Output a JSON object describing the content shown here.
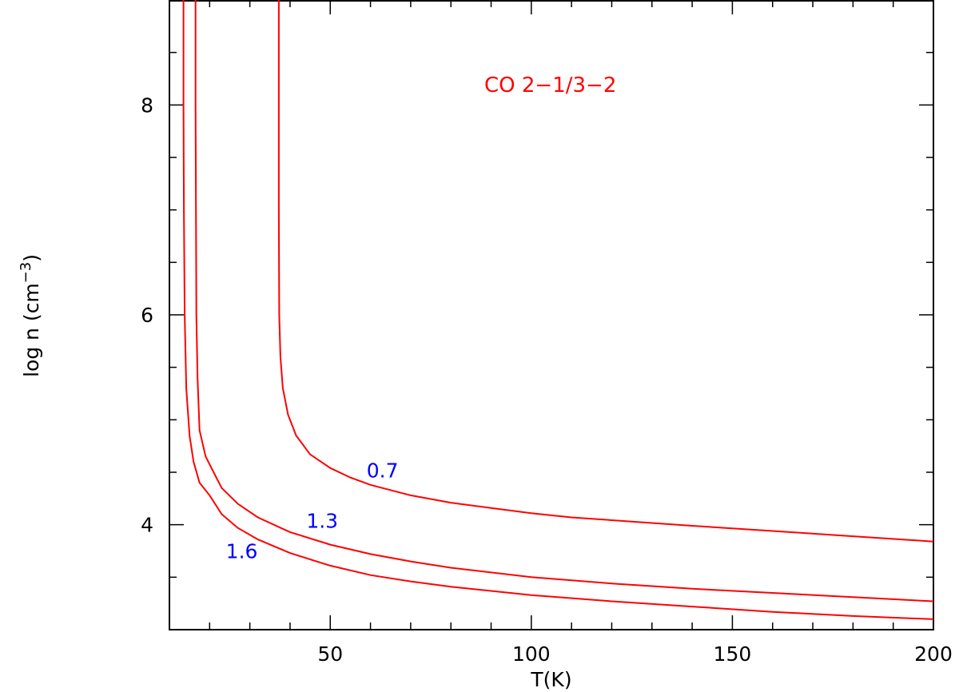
{
  "chart_data": {
    "type": "line",
    "title": "",
    "annotation": "CO 2−1/3−2",
    "xlabel": "T(K)",
    "ylabel_main": "log n  (cm",
    "ylabel_sup": "−3",
    "ylabel_close": ")",
    "xlim": [
      10,
      200
    ],
    "ylim": [
      3.0,
      9.0
    ],
    "xticks": [
      50,
      100,
      150,
      200
    ],
    "yticks": [
      4,
      6,
      8
    ],
    "grid": false,
    "colors": {
      "line": "#ff0000",
      "label": "#0000ff",
      "annotation": "#ff0000",
      "axis": "#000000"
    },
    "series": [
      {
        "label": "0.7",
        "label_at": [
          63,
          4.45
        ],
        "points": [
          [
            37.2,
            9.0
          ],
          [
            37.2,
            8.0
          ],
          [
            37.2,
            7.0
          ],
          [
            37.3,
            6.0
          ],
          [
            37.6,
            5.6
          ],
          [
            38.2,
            5.3
          ],
          [
            39.5,
            5.05
          ],
          [
            41.5,
            4.85
          ],
          [
            45,
            4.67
          ],
          [
            50,
            4.54
          ],
          [
            55,
            4.45
          ],
          [
            60,
            4.38
          ],
          [
            70,
            4.28
          ],
          [
            80,
            4.21
          ],
          [
            90,
            4.16
          ],
          [
            100,
            4.11
          ],
          [
            110,
            4.07
          ],
          [
            125,
            4.03
          ],
          [
            140,
            3.99
          ],
          [
            160,
            3.94
          ],
          [
            180,
            3.89
          ],
          [
            200,
            3.84
          ]
        ]
      },
      {
        "label": "1.3",
        "label_at": [
          48,
          3.97
        ],
        "points": [
          [
            16.5,
            9.0
          ],
          [
            16.5,
            8.0
          ],
          [
            16.6,
            7.0
          ],
          [
            16.7,
            6.0
          ],
          [
            17.0,
            5.4
          ],
          [
            17.5,
            4.9
          ],
          [
            19,
            4.65
          ],
          [
            21,
            4.5
          ],
          [
            23,
            4.35
          ],
          [
            27,
            4.2
          ],
          [
            32,
            4.07
          ],
          [
            40,
            3.93
          ],
          [
            50,
            3.81
          ],
          [
            60,
            3.72
          ],
          [
            70,
            3.65
          ],
          [
            80,
            3.59
          ],
          [
            100,
            3.5
          ],
          [
            120,
            3.44
          ],
          [
            140,
            3.39
          ],
          [
            160,
            3.35
          ],
          [
            180,
            3.31
          ],
          [
            200,
            3.27
          ]
        ]
      },
      {
        "label": "1.6",
        "label_at": [
          28,
          3.68
        ],
        "points": [
          [
            13.5,
            9.0
          ],
          [
            13.5,
            8.0
          ],
          [
            13.6,
            7.0
          ],
          [
            13.8,
            6.0
          ],
          [
            14.2,
            5.3
          ],
          [
            15,
            4.85
          ],
          [
            16,
            4.6
          ],
          [
            17.5,
            4.4
          ],
          [
            20,
            4.28
          ],
          [
            23,
            4.1
          ],
          [
            27,
            3.97
          ],
          [
            32,
            3.86
          ],
          [
            40,
            3.73
          ],
          [
            50,
            3.61
          ],
          [
            60,
            3.52
          ],
          [
            70,
            3.46
          ],
          [
            80,
            3.41
          ],
          [
            100,
            3.33
          ],
          [
            120,
            3.27
          ],
          [
            140,
            3.22
          ],
          [
            160,
            3.17
          ],
          [
            180,
            3.13
          ],
          [
            200,
            3.1
          ]
        ]
      }
    ]
  }
}
